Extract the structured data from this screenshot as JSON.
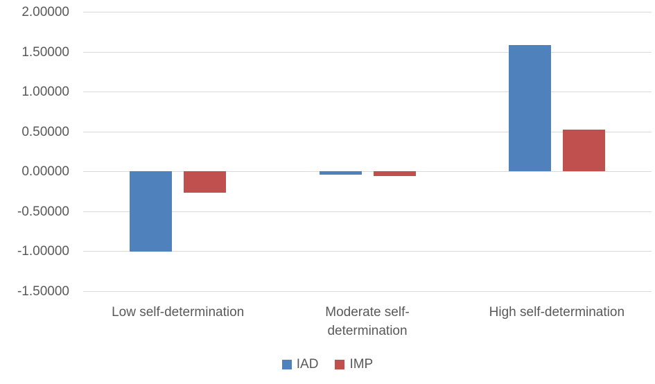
{
  "chart_data": {
    "type": "bar",
    "title": "",
    "xlabel": "",
    "ylabel": "",
    "categories": [
      "Low self-determination",
      "Moderate self-determination",
      "High self-determination"
    ],
    "series": [
      {
        "name": "IAD",
        "color": "#4F81BD",
        "values": [
          -1.01,
          -0.04,
          1.58
        ]
      },
      {
        "name": "IMP",
        "color": "#C0504D",
        "values": [
          -0.27,
          -0.06,
          0.52
        ]
      }
    ],
    "ylim": [
      -1.5,
      2.0
    ],
    "ytick_step": 0.5,
    "ytick_labels": [
      "2.00000",
      "1.50000",
      "1.00000",
      "0.50000",
      "0.00000",
      "-0.50000",
      "-1.00000",
      "-1.50000"
    ],
    "grid": true,
    "legend_position": "bottom-center"
  },
  "colors": {
    "gridline": "#d9d9d9",
    "axis_text": "#595959",
    "background": "#ffffff"
  }
}
